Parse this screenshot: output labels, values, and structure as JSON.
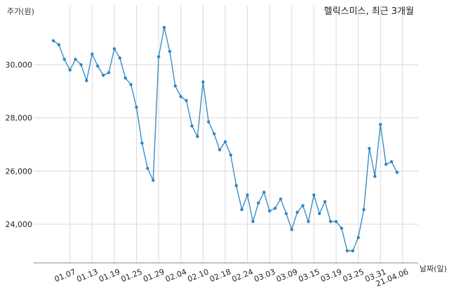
{
  "chart_data": {
    "type": "line",
    "title": "헬릭스미스, 최근 3개월",
    "ylabel": "주가(원)",
    "xlabel": "날짜(일)",
    "ylim": [
      22600,
      32000
    ],
    "yticks": [
      24000,
      26000,
      28000,
      30000
    ],
    "ytick_labels": [
      "24,000",
      "26,000",
      "28,000",
      "30,000"
    ],
    "xtick_labels": [
      "01.07",
      "01.13",
      "01.19",
      "01.25",
      "01.29",
      "02.04",
      "02.10",
      "02.18",
      "02.24",
      "03.03",
      "03.09",
      "03.15",
      "03.19",
      "03.25",
      "03.31",
      "21.04.06"
    ],
    "xtick_index": [
      3,
      7,
      11,
      15,
      19,
      23,
      27,
      31,
      35,
      39,
      43,
      47,
      51,
      55,
      59,
      63
    ],
    "grid": true,
    "color": "#2e86c1",
    "series": [
      {
        "values": [
          30900,
          30750,
          30200,
          29800,
          30200,
          30000,
          29400,
          30400,
          29950,
          29600,
          29700,
          30600,
          30250,
          29500,
          29250,
          28400,
          27050,
          26100,
          25650,
          30300,
          31400,
          30500,
          29200,
          28800,
          28650,
          27700,
          27300,
          29350,
          27850,
          27400,
          26800,
          27100,
          26600,
          25450,
          24550,
          25100,
          24100,
          24800,
          25200,
          24500,
          24600,
          24950,
          24400,
          23800,
          24450,
          24700,
          24100,
          25100,
          24400,
          24850,
          24100,
          24100,
          23850,
          23000,
          23000,
          23500,
          24550,
          26850,
          25800,
          27750,
          26250,
          26350,
          25950
        ]
      }
    ]
  }
}
